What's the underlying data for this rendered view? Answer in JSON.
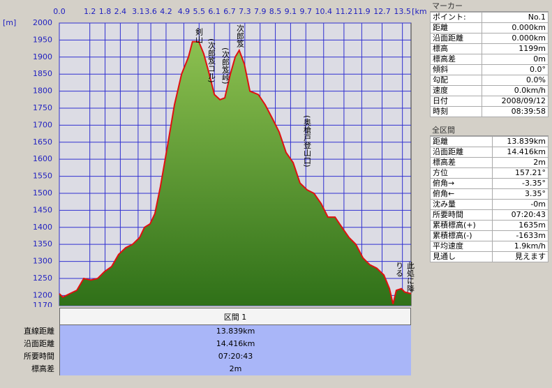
{
  "chart_data": {
    "type": "area",
    "x_unit": "[km]",
    "y_unit": "[m]",
    "x": [
      0,
      0.14,
      0.41,
      0.69,
      0.96,
      1.24,
      1.51,
      1.78,
      2.06,
      2.33,
      2.61,
      2.88,
      3.16,
      3.35,
      3.57,
      3.76,
      3.98,
      4.26,
      4.53,
      4.81,
      5.08,
      5.24,
      5.49,
      5.68,
      5.9,
      6.1,
      6.32,
      6.51,
      6.73,
      6.92,
      7.08,
      7.28,
      7.5,
      7.83,
      8.1,
      8.38,
      8.65,
      8.92,
      9.2,
      9.47,
      9.75,
      10.02,
      10.3,
      10.57,
      10.85,
      11.12,
      11.4,
      11.67,
      11.95,
      12.22,
      12.49,
      12.77,
      12.99,
      13.13,
      13.26,
      13.46,
      13.59,
      13.839
    ],
    "values": [
      1205,
      1195,
      1205,
      1215,
      1250,
      1245,
      1250,
      1270,
      1285,
      1320,
      1340,
      1350,
      1370,
      1400,
      1410,
      1440,
      1520,
      1640,
      1760,
      1850,
      1900,
      1945,
      1945,
      1910,
      1850,
      1790,
      1775,
      1780,
      1850,
      1900,
      1920,
      1880,
      1800,
      1790,
      1760,
      1720,
      1680,
      1620,
      1590,
      1530,
      1510,
      1500,
      1470,
      1430,
      1430,
      1400,
      1370,
      1350,
      1310,
      1290,
      1280,
      1260,
      1220,
      1175,
      1215,
      1220,
      1210,
      1205
    ],
    "line_color": "#e01010",
    "fill_top": "#8cc050",
    "fill_bottom": "#2f7018",
    "xlim": [
      0,
      13.839
    ],
    "ylim": [
      1170,
      2000
    ],
    "xticks": [
      {
        "value": 0,
        "label": "0.0"
      },
      1.2,
      1.8,
      2.4,
      3.1,
      3.6,
      4.2,
      4.9,
      5.5,
      6.1,
      6.7,
      7.3,
      7.9,
      8.5,
      9.1,
      9.7,
      10.4,
      11.2,
      11.9,
      12.7,
      13.5
    ],
    "yticks": [
      1170,
      1200,
      1250,
      1300,
      1350,
      1400,
      1450,
      1500,
      1550,
      1600,
      1650,
      1700,
      1750,
      1800,
      1850,
      1900,
      1950,
      2000
    ],
    "grid": true,
    "annotations": [
      "剣山",
      "(次郎笈コル)",
      "(次郎笈峠)",
      "次郎笈",
      "(奥槍戸登山口)",
      "此処に降",
      "りる"
    ]
  },
  "section_table": {
    "header": "区間 1",
    "rows": [
      [
        "直線距離",
        "13.839km"
      ],
      [
        "沿面距離",
        "14.416km"
      ],
      [
        "所要時間",
        "07:20:43"
      ],
      [
        "標高差",
        "2m"
      ]
    ]
  },
  "marker_panel": {
    "title": "マーカー",
    "rows": [
      [
        "ポイント:",
        "No.1"
      ],
      [
        "距離",
        "0.000km"
      ],
      [
        "沿面距離",
        "0.000km"
      ],
      [
        "標高",
        "1199m"
      ],
      [
        "標高差",
        "0m"
      ],
      [
        "傾斜",
        "0.0°"
      ],
      [
        "勾配",
        "0.0%"
      ],
      [
        "速度",
        "0.0km/h"
      ],
      [
        "日付",
        "2008/09/12"
      ],
      [
        "時刻",
        "08:39:58"
      ]
    ]
  },
  "all_section_panel": {
    "title": "全区間",
    "rows": [
      [
        "距離",
        "13.839km"
      ],
      [
        "沿面距離",
        "14.416km"
      ],
      [
        "標高差",
        "2m"
      ],
      [
        "方位",
        "157.21°"
      ],
      [
        "俯角→",
        "-3.35°"
      ],
      [
        "俯角←",
        "3.35°"
      ],
      [
        "沈み量",
        "-0m"
      ],
      [
        "所要時間",
        "07:20:43"
      ],
      [
        "累積標高(+)",
        "1635m"
      ],
      [
        "累積標高(-)",
        "-1633m"
      ],
      [
        "平均速度",
        "1.9km/h"
      ],
      [
        "見通し",
        "見えます"
      ]
    ]
  }
}
